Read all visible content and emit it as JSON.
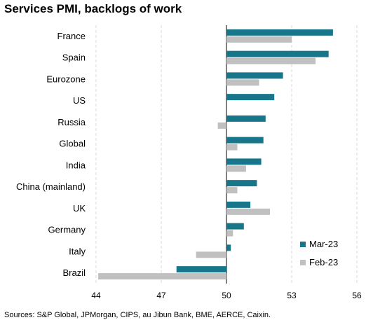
{
  "title": "Services PMI, backlogs of work",
  "source": "Sources: S&P Global, JPMorgan, CIPS, au Jibun Bank, BME, AERCE, Caixin.",
  "colors": {
    "mar": "#17768a",
    "feb": "#c0c0c0",
    "grid": "#d9d9d9",
    "axis": "#000000"
  },
  "chart_data": {
    "type": "bar",
    "orientation": "horizontal",
    "title": "Services PMI, backlogs of work",
    "xlabel": "",
    "ylabel": "",
    "xlim": [
      44,
      56
    ],
    "baseline": 50,
    "x_ticks": [
      44,
      47,
      50,
      53,
      56
    ],
    "grid": "vertical dashed",
    "legend_position": "bottom-right",
    "categories": [
      "France",
      "Spain",
      "Eurozone",
      "US",
      "Russia",
      "Global",
      "India",
      "China (mainland)",
      "UK",
      "Germany",
      "Italy",
      "Brazil"
    ],
    "series": [
      {
        "name": "Mar-23",
        "values": [
          54.9,
          54.7,
          52.6,
          52.2,
          51.8,
          51.7,
          51.6,
          51.4,
          51.1,
          50.8,
          50.2,
          47.7
        ]
      },
      {
        "name": "Feb-23",
        "values": [
          53.0,
          54.1,
          51.5,
          null,
          49.6,
          50.5,
          50.9,
          50.5,
          52.0,
          50.3,
          48.6,
          44.1
        ]
      }
    ]
  }
}
